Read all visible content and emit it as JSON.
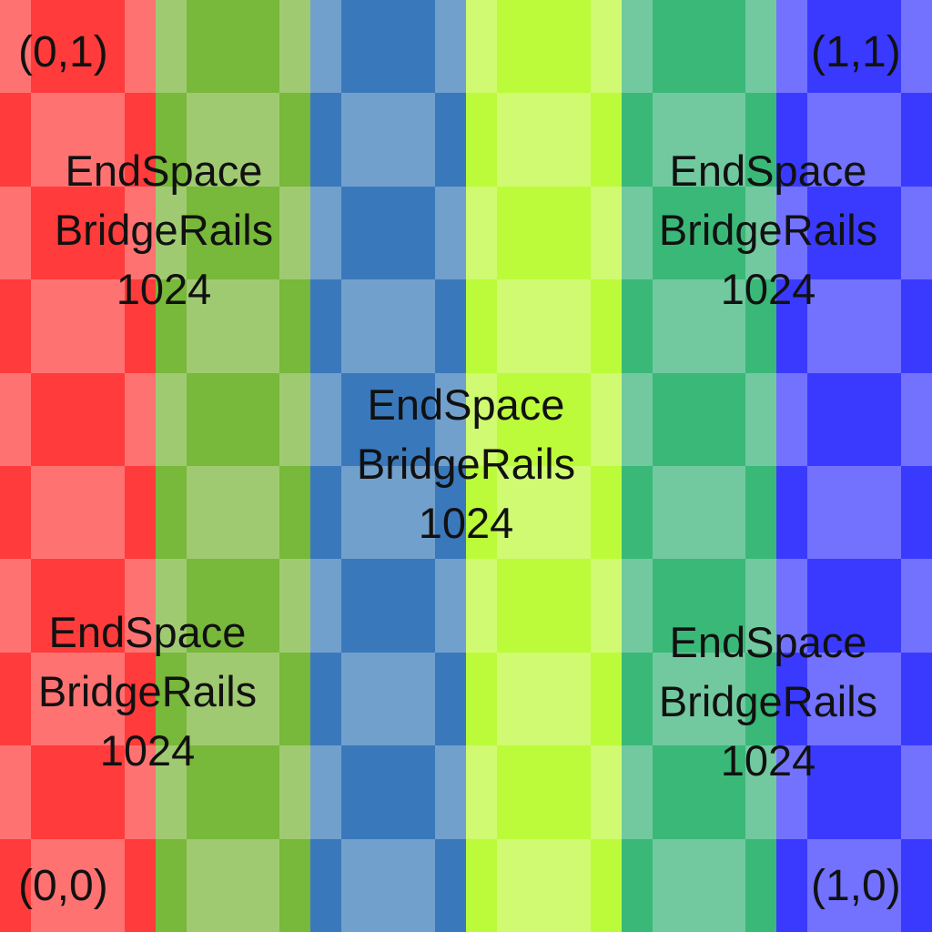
{
  "texture": {
    "label_lines": [
      "EndSpace",
      "BridgeRails",
      "1024"
    ],
    "corners": {
      "top_left": "(0,1)",
      "top_right": "(1,1)",
      "bottom_left": "(0,0)",
      "bottom_right": "(1,0)"
    },
    "column_colors": [
      {
        "dark": "#ff3b3b",
        "light": "#ff7272"
      },
      {
        "dark": "#78b83a",
        "light": "#a0ca72"
      },
      {
        "dark": "#3a78bc",
        "light": "#72a0cc"
      },
      {
        "dark": "#bcfb3a",
        "light": "#cffa72"
      },
      {
        "dark": "#3ab878",
        "light": "#72c99f"
      },
      {
        "dark": "#3a3aff",
        "light": "#7272ff"
      }
    ]
  }
}
